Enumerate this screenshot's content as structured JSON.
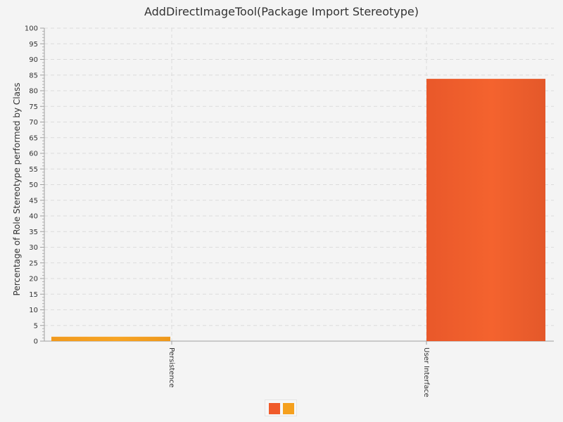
{
  "chart_data": {
    "type": "bar",
    "title": "AddDirectImageTool(Package Import Stereotype)",
    "ylabel": "Percentage of Role Stereotype performed by Class",
    "xlabel": "",
    "categories": [
      "Persistence",
      "User Interface"
    ],
    "series": [
      {
        "color": "#f05a2a",
        "values": [
          0,
          83.8
        ]
      },
      {
        "color": "#f5a01e",
        "values": [
          1.4,
          0
        ]
      }
    ],
    "ylim": [
      0,
      100
    ],
    "ytick_step": 5,
    "grid": true,
    "legend": "bottom-center"
  }
}
